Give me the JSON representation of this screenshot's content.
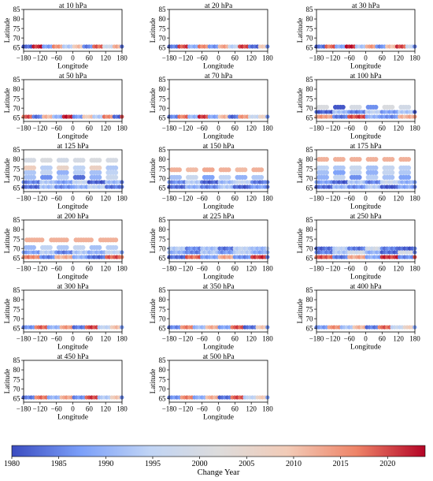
{
  "figure": {
    "colorbar_label": "Change Year",
    "colorbar_ticks": [
      "1980",
      "1985",
      "1990",
      "1995",
      "2000",
      "2005",
      "2010",
      "2015",
      "2020"
    ],
    "colormap": [
      "#3b4cc0",
      "#7b9ff9",
      "#c0d4f5",
      "#dddcdc",
      "#f2cbb7",
      "#ee8468",
      "#b40426"
    ],
    "colorbar_range": [
      1980,
      2024
    ]
  },
  "chart_data": [
    {
      "type": "scatter",
      "title": "at  10 hPa",
      "xlabel": "Longitude",
      "ylabel": "Latitude",
      "xlim": [
        -180,
        180
      ],
      "ylim": [
        63,
        85
      ],
      "xticks": [
        "−180",
        "−120",
        "−60",
        "0",
        "60",
        "120",
        "180"
      ],
      "yticks": [
        "65",
        "70",
        "75",
        "80",
        "85"
      ],
      "points": [
        {
          "lat": 65.5,
          "years": [
            1982,
            2022,
            1988,
            2015,
            1993,
            2010,
            1985,
            2019,
            1998,
            2012
          ]
        }
      ]
    },
    {
      "type": "scatter",
      "title": "at  20 hPa",
      "xlabel": "Longitude",
      "ylabel": "Latitude",
      "xlim": [
        -180,
        180
      ],
      "ylim": [
        63,
        85
      ],
      "xticks": [
        "−180",
        "−120",
        "−60",
        "0",
        "60",
        "120",
        "180"
      ],
      "yticks": [
        "65",
        "70",
        "75",
        "80",
        "85"
      ],
      "points": [
        {
          "lat": 65.5,
          "years": [
            1984,
            2020,
            1990,
            2016,
            1986,
            2013,
            1995,
            2021,
            1983,
            2008
          ]
        }
      ]
    },
    {
      "type": "scatter",
      "title": "at  30 hPa",
      "xlabel": "Longitude",
      "ylabel": "Latitude",
      "xlim": [
        -180,
        180
      ],
      "ylim": [
        63,
        85
      ],
      "xticks": [
        "−180",
        "−120",
        "−60",
        "0",
        "60",
        "120",
        "180"
      ],
      "yticks": [
        "65",
        "70",
        "75",
        "80",
        "85"
      ],
      "points": [
        {
          "lat": 65.5,
          "years": [
            1983,
            2018,
            1989,
            2023,
            1992,
            2014,
            1986,
            2011,
            2020,
            1996
          ]
        }
      ]
    },
    {
      "type": "scatter",
      "title": "at  50 hPa",
      "xlabel": "Longitude",
      "ylabel": "Latitude",
      "xlim": [
        -180,
        180
      ],
      "ylim": [
        63,
        85
      ],
      "xticks": [
        "−180",
        "−120",
        "−60",
        "0",
        "60",
        "120",
        "180"
      ],
      "yticks": [
        "65",
        "70",
        "75",
        "80",
        "85"
      ],
      "points": [
        {
          "lat": 65.5,
          "years": [
            2019,
            1984,
            2012,
            1990,
            2022,
            1987,
            2009,
            1994,
            2016,
            1982
          ]
        }
      ]
    },
    {
      "type": "scatter",
      "title": "at  70 hPa",
      "xlabel": "Longitude",
      "ylabel": "Latitude",
      "xlim": [
        -180,
        180
      ],
      "ylim": [
        63,
        85
      ],
      "xticks": [
        "−180",
        "−120",
        "−60",
        "0",
        "60",
        "120",
        "180"
      ],
      "yticks": [
        "65",
        "70",
        "75",
        "80",
        "85"
      ],
      "points": [
        {
          "lat": 65.5,
          "years": [
            1985,
            2017,
            1991,
            2021,
            1988,
            2011,
            1983,
            2015,
            1997,
            2006
          ]
        }
      ]
    },
    {
      "type": "scatter",
      "title": "at  100 hPa",
      "xlabel": "Longitude",
      "ylabel": "Latitude",
      "xlim": [
        -180,
        180
      ],
      "ylim": [
        63,
        85
      ],
      "xticks": [
        "−180",
        "−120",
        "−60",
        "0",
        "60",
        "120",
        "180"
      ],
      "yticks": [
        "65",
        "70",
        "75",
        "80",
        "85"
      ],
      "points": [
        {
          "lat": 65.5,
          "years": [
            2014,
            1984,
            2020,
            1990,
            1986,
            2012
          ]
        },
        {
          "lat": 68,
          "years": [
            1982,
            1992,
            1985,
            1995,
            1988,
            1993
          ]
        },
        {
          "lat": 70.5,
          "years": [
            2001,
            1981,
            2000,
            1986,
            2001,
            1999
          ]
        }
      ]
    },
    {
      "type": "scatter",
      "title": "at  125 hPa",
      "xlabel": "Longitude",
      "ylabel": "Latitude",
      "xlim": [
        -180,
        180
      ],
      "ylim": [
        63,
        85
      ],
      "xticks": [
        "−180",
        "−120",
        "−60",
        "0",
        "60",
        "120",
        "180"
      ],
      "yticks": [
        "65",
        "70",
        "75",
        "80",
        "85"
      ],
      "points": [
        {
          "lat": 65.5,
          "years": [
            1983,
            1992,
            1986,
            1990,
            1995,
            1984
          ]
        },
        {
          "lat": 68,
          "years": [
            1985,
            1993,
            1988,
            1996,
            1982,
            1991
          ]
        },
        {
          "lat": 70.5,
          "years": [
            1992,
            1986,
            1994,
            1983,
            1990,
            1997
          ]
        },
        {
          "lat": 73,
          "years": [
            1993,
            1996,
            1990,
            1994,
            1992,
            1995
          ]
        },
        {
          "lat": 75.5,
          "years": [
            2008,
            1994,
            2006,
            1995,
            2007,
            1993
          ]
        },
        {
          "lat": 79.5,
          "years": [
            2000,
            2001,
            1999,
            2000,
            2001,
            2000
          ]
        }
      ]
    },
    {
      "type": "scatter",
      "title": "at  150 hPa",
      "xlabel": "Longitude",
      "ylabel": "Latitude",
      "xlim": [
        -180,
        180
      ],
      "ylim": [
        63,
        85
      ],
      "xticks": [
        "−180",
        "−120",
        "−60",
        "0",
        "60",
        "120",
        "180"
      ],
      "yticks": [
        "65",
        "70",
        "75",
        "80",
        "85"
      ],
      "points": [
        {
          "lat": 65.5,
          "years": [
            1983,
            1990,
            1985,
            1993,
            1982,
            1988
          ]
        },
        {
          "lat": 68,
          "years": [
            1986,
            1994,
            1982,
            1991,
            1996,
            1984
          ]
        },
        {
          "lat": 70.5,
          "years": [
            1992,
            1997,
            1988,
            1995,
            1990,
            1993
          ]
        },
        {
          "lat": 74.5,
          "years": [
            2012,
            2011,
            2013,
            2012,
            2011,
            2012
          ]
        }
      ]
    },
    {
      "type": "scatter",
      "title": "at  175 hPa",
      "xlabel": "Longitude",
      "ylabel": "Latitude",
      "xlim": [
        -180,
        180
      ],
      "ylim": [
        63,
        85
      ],
      "xticks": [
        "−180",
        "−120",
        "−60",
        "0",
        "60",
        "120",
        "180"
      ],
      "yticks": [
        "65",
        "70",
        "75",
        "80",
        "85"
      ],
      "points": [
        {
          "lat": 65.5,
          "years": [
            1983,
            1991,
            1986,
            1994,
            1981,
            1989
          ]
        },
        {
          "lat": 68,
          "years": [
            1988,
            1982,
            1993,
            1985,
            1997,
            1990
          ]
        },
        {
          "lat": 70.5,
          "years": [
            1990,
            1996,
            1986,
            1994,
            1992,
            1988
          ]
        },
        {
          "lat": 73,
          "years": [
            1992,
            1988,
            1995,
            1990,
            1996,
            1993
          ]
        },
        {
          "lat": 75.5,
          "years": [
            1995,
            1993,
            1997,
            1992,
            1996,
            1994
          ]
        },
        {
          "lat": 80,
          "years": [
            2012,
            2012,
            2012,
            2012,
            2012,
            2012
          ]
        }
      ]
    },
    {
      "type": "scatter",
      "title": "at  200 hPa",
      "xlabel": "Longitude",
      "ylabel": "Latitude",
      "xlim": [
        -180,
        180
      ],
      "ylim": [
        63,
        85
      ],
      "xticks": [
        "−180",
        "−120",
        "−60",
        "0",
        "60",
        "120",
        "180"
      ],
      "yticks": [
        "65",
        "70",
        "75",
        "80",
        "85"
      ],
      "points": [
        {
          "lat": 65.5,
          "years": [
            2016,
            1985,
            2012,
            1990,
            1983,
            2019
          ]
        },
        {
          "lat": 68,
          "years": [
            1988,
            1994,
            1985,
            1993,
            1990,
            1996
          ]
        },
        {
          "lat": 70.5,
          "years": [
            1991,
            1995,
            1993,
            1996,
            1992,
            1994
          ]
        },
        {
          "lat": 74.5,
          "years": [
            2012,
            2012,
            2012,
            2012
          ]
        }
      ]
    },
    {
      "type": "scatter",
      "title": "at  225 hPa",
      "xlabel": "Longitude",
      "ylabel": "Latitude",
      "xlim": [
        -180,
        180
      ],
      "ylim": [
        63,
        85
      ],
      "xticks": [
        "−180",
        "−120",
        "−60",
        "0",
        "60",
        "120",
        "180"
      ],
      "yticks": [
        "65",
        "70",
        "75",
        "80",
        "85"
      ],
      "points": [
        {
          "lat": 65.5,
          "years": [
            1983,
            2018,
            1988,
            2013,
            1986,
            2021
          ]
        },
        {
          "lat": 68,
          "years": [
            1990,
            1985,
            1993,
            1987,
            1995,
            1989
          ]
        },
        {
          "lat": 70,
          "years": [
            1994,
            1986,
            1992,
            1984,
            1995,
            1991
          ]
        }
      ]
    },
    {
      "type": "scatter",
      "title": "at  250 hPa",
      "xlabel": "Longitude",
      "ylabel": "Latitude",
      "xlim": [
        -180,
        180
      ],
      "ylim": [
        63,
        85
      ],
      "xticks": [
        "−180",
        "−120",
        "−60",
        "0",
        "60",
        "120",
        "180"
      ],
      "yticks": [
        "65",
        "70",
        "75",
        "80",
        "85"
      ],
      "points": [
        {
          "lat": 65.5,
          "years": [
            2019,
            1984,
            2013,
            1989,
            2021,
            1986
          ]
        },
        {
          "lat": 68,
          "years": [
            1985,
            1993,
            1999,
            1990,
            1983,
            2000
          ]
        },
        {
          "lat": 70,
          "years": [
            1983,
            1995,
            1984,
            1999,
            1985,
            1982
          ]
        }
      ]
    },
    {
      "type": "scatter",
      "title": "at  300 hPa",
      "xlabel": "Longitude",
      "ylabel": "Latitude",
      "xlim": [
        -180,
        180
      ],
      "ylim": [
        63,
        85
      ],
      "xticks": [
        "−180",
        "−120",
        "−60",
        "0",
        "60",
        "120",
        "180"
      ],
      "yticks": [
        "65",
        "70",
        "75",
        "80",
        "85"
      ],
      "points": [
        {
          "lat": 65.5,
          "years": [
            1986,
            2018,
            1990,
            2014,
            1984,
            2020,
            1995,
            2010
          ]
        }
      ]
    },
    {
      "type": "scatter",
      "title": "at  350 hPa",
      "xlabel": "Longitude",
      "ylabel": "Latitude",
      "xlim": [
        -180,
        180
      ],
      "ylim": [
        63,
        85
      ],
      "xticks": [
        "−180",
        "−120",
        "−60",
        "0",
        "60",
        "120",
        "180"
      ],
      "yticks": [
        "65",
        "70",
        "75",
        "80",
        "85"
      ],
      "points": [
        {
          "lat": 65.5,
          "years": [
            1985,
            2016,
            1991,
            2012,
            1988,
            2019,
            1983,
            2009
          ]
        }
      ]
    },
    {
      "type": "scatter",
      "title": "at  400 hPa",
      "xlabel": "Longitude",
      "ylabel": "Latitude",
      "xlim": [
        -180,
        180
      ],
      "ylim": [
        63,
        85
      ],
      "xticks": [
        "−180",
        "−120",
        "−60",
        "0",
        "60",
        "120",
        "180"
      ],
      "yticks": [
        "65",
        "70",
        "75",
        "80",
        "85"
      ],
      "points": [
        {
          "lat": 65.5,
          "years": [
            1987,
            2015,
            1992,
            2011,
            1984,
            2018,
            1996,
            2007
          ]
        }
      ]
    },
    {
      "type": "scatter",
      "title": "at  450 hPa",
      "xlabel": "Longitude",
      "ylabel": "Latitude",
      "xlim": [
        -180,
        180
      ],
      "ylim": [
        63,
        85
      ],
      "xticks": [
        "−180",
        "−120",
        "−60",
        "0",
        "60",
        "120",
        "180"
      ],
      "yticks": [
        "65",
        "70",
        "75",
        "80",
        "85"
      ],
      "points": [
        {
          "lat": 65.5,
          "years": [
            1984,
            2017,
            1990,
            2013,
            1986,
            2020,
            1993,
            2009
          ]
        }
      ]
    },
    {
      "type": "scatter",
      "title": "at  500 hPa",
      "xlabel": "Longitude",
      "ylabel": "Latitude",
      "xlim": [
        -180,
        180
      ],
      "ylim": [
        63,
        85
      ],
      "xticks": [
        "−180",
        "−120",
        "−60",
        "0",
        "60",
        "120",
        "180"
      ],
      "yticks": [
        "65",
        "70",
        "75",
        "80",
        "85"
      ],
      "points": [
        {
          "lat": 65.5,
          "years": [
            1986,
            2016,
            1989,
            2012,
            1983,
            2019,
            1995,
            2008
          ]
        }
      ]
    }
  ]
}
